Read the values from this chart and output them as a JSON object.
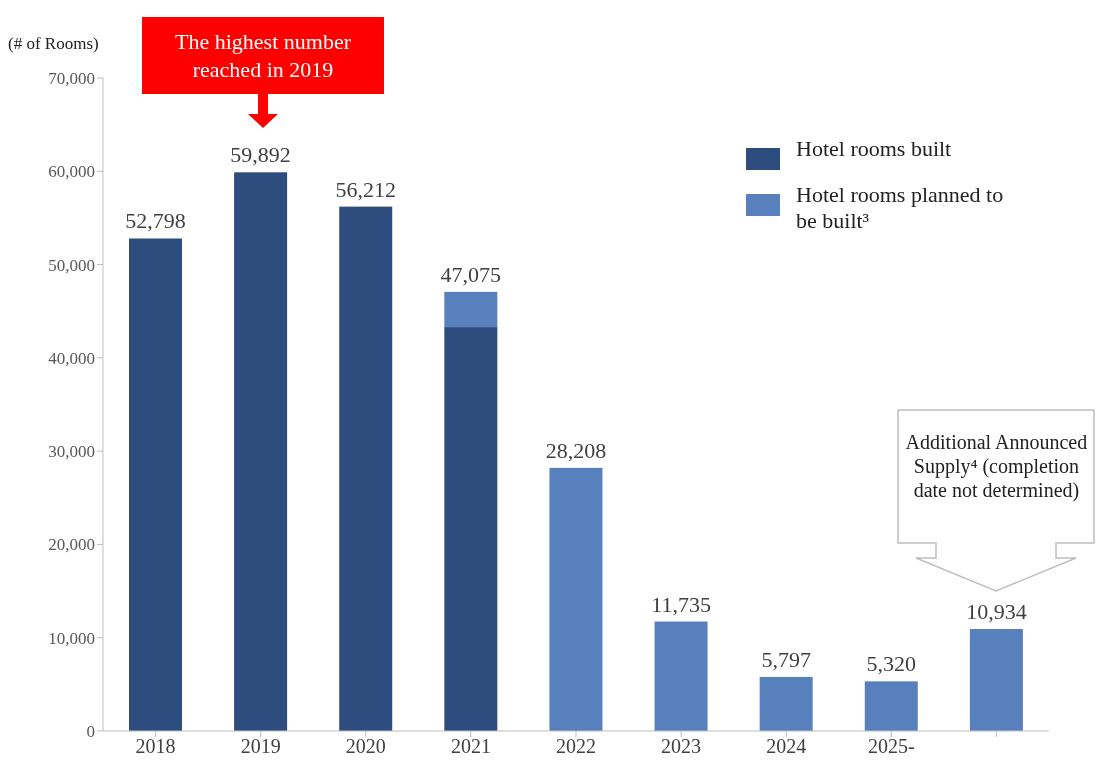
{
  "chart_data": {
    "type": "bar",
    "stacked": true,
    "ylabel": "(# of Rooms)",
    "categories": [
      "2018",
      "2019",
      "2020",
      "2021",
      "2022",
      "2023",
      "2024",
      "2025-",
      null
    ],
    "series": [
      {
        "name": "Hotel rooms built",
        "color": "#2e4d7f",
        "values": [
          52798,
          59892,
          56212,
          43300,
          null,
          null,
          null,
          null,
          null
        ]
      },
      {
        "name": "Hotel rooms planned to be built³",
        "color": "#5880bc",
        "values": [
          null,
          null,
          null,
          3775,
          28208,
          11735,
          5797,
          5320,
          10934
        ]
      }
    ],
    "totals": [
      "52,798",
      "59,892",
      "56,212",
      "47,075",
      "28,208",
      "11,735",
      "5,797",
      "5,320",
      "10,934"
    ],
    "ylim": [
      0,
      70000
    ],
    "yticks": [
      0,
      {
        "value": 10000,
        "label": "10,000"
      },
      {
        "value": 20000,
        "label": "20,000"
      },
      {
        "value": 30000,
        "label": "30,000"
      },
      {
        "value": 40000,
        "label": "40,000"
      },
      {
        "value": 50000,
        "label": "50,000"
      },
      {
        "value": 60000,
        "label": "60,000"
      },
      {
        "value": 70000,
        "label": "70,000"
      }
    ],
    "grid": false,
    "legend": "top right",
    "annotations": [
      "The highest number reached in 2019",
      "Additional Announced Supply⁴ (completion date not determined)"
    ]
  }
}
